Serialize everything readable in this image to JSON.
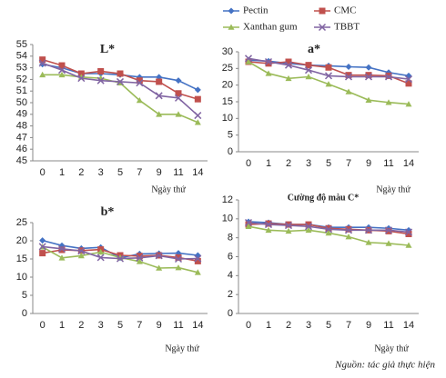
{
  "chart_data": [
    {
      "type": "line",
      "title": "L*",
      "x_label": "Ngày thứ",
      "categories": [
        "0",
        "1",
        "2",
        "3",
        "5",
        "7",
        "9",
        "11",
        "14"
      ],
      "ylim": [
        45,
        55
      ],
      "yticks": [
        45,
        46,
        47,
        48,
        49,
        50,
        51,
        52,
        53,
        54,
        55
      ],
      "series": [
        {
          "name": "Pectin",
          "color": "#4472c4",
          "marker": "diamond",
          "values": [
            53.3,
            53.0,
            52.5,
            52.5,
            52.4,
            52.2,
            52.2,
            51.9,
            51.1
          ]
        },
        {
          "name": "CMC",
          "color": "#c0504d",
          "marker": "square",
          "values": [
            53.7,
            53.2,
            52.5,
            52.7,
            52.5,
            51.9,
            51.8,
            50.8,
            50.3
          ]
        },
        {
          "name": "Xanthan gum",
          "color": "#9bbb59",
          "marker": "triangle",
          "values": [
            52.4,
            52.4,
            52.2,
            52.1,
            51.7,
            50.2,
            49.0,
            49.0,
            48.3
          ]
        },
        {
          "name": "TBBT",
          "color": "#8064a2",
          "marker": "x",
          "values": [
            53.4,
            52.8,
            52.1,
            51.9,
            51.8,
            51.7,
            50.6,
            50.4,
            48.9
          ]
        }
      ]
    },
    {
      "type": "line",
      "title": "a*",
      "x_label": "Ngày thứ",
      "categories": [
        "0",
        "1",
        "2",
        "3",
        "5",
        "7",
        "9",
        "11",
        "14"
      ],
      "ylim": [
        0,
        30
      ],
      "yticks": [
        0,
        5,
        10,
        15,
        20,
        25,
        30
      ],
      "series": [
        {
          "color": "#4472c4",
          "marker": "diamond",
          "values": [
            27.5,
            27.2,
            26.5,
            26.0,
            25.8,
            25.5,
            25.3,
            23.8,
            22.8
          ]
        },
        {
          "color": "#c0504d",
          "marker": "square",
          "values": [
            27.0,
            26.5,
            27.0,
            26.0,
            25.3,
            23.0,
            23.0,
            22.8,
            20.5
          ]
        },
        {
          "color": "#9bbb59",
          "marker": "triangle",
          "values": [
            27.0,
            23.5,
            22.0,
            22.5,
            20.3,
            18.0,
            15.5,
            14.8,
            14.3
          ]
        },
        {
          "color": "#8064a2",
          "marker": "x",
          "values": [
            28.0,
            27.0,
            26.0,
            24.5,
            22.8,
            22.5,
            22.5,
            22.5,
            21.8
          ]
        }
      ]
    },
    {
      "type": "line",
      "title": "b*",
      "x_label": "Ngày thứ",
      "categories": [
        "0",
        "1",
        "2",
        "3",
        "5",
        "7",
        "9",
        "11",
        "14"
      ],
      "ylim": [
        0,
        25
      ],
      "yticks": [
        0,
        5,
        10,
        15,
        20,
        25
      ],
      "series": [
        {
          "color": "#4472c4",
          "marker": "diamond",
          "values": [
            20.1,
            18.7,
            17.9,
            18.2,
            15.3,
            16.4,
            16.5,
            16.6,
            16.0
          ]
        },
        {
          "color": "#c0504d",
          "marker": "square",
          "values": [
            16.6,
            17.5,
            17.3,
            17.6,
            16.0,
            15.8,
            16.0,
            15.4,
            14.4
          ]
        },
        {
          "color": "#9bbb59",
          "marker": "triangle",
          "values": [
            18.3,
            15.3,
            15.9,
            16.9,
            15.4,
            14.3,
            12.5,
            12.6,
            11.3
          ]
        },
        {
          "color": "#8064a2",
          "marker": "x",
          "values": [
            18.4,
            17.8,
            17.2,
            15.4,
            15.1,
            15.3,
            15.9,
            15.0,
            15.1
          ]
        }
      ]
    },
    {
      "type": "line",
      "title": "Cường độ màu C*",
      "x_label": "Ngày thứ",
      "categories": [
        "0",
        "1",
        "2",
        "3",
        "5",
        "7",
        "9",
        "11",
        "14"
      ],
      "ylim": [
        0,
        12
      ],
      "yticks": [
        0,
        2,
        4,
        6,
        8,
        10,
        12
      ],
      "series": [
        {
          "color": "#4472c4",
          "marker": "diamond",
          "values": [
            9.7,
            9.6,
            9.4,
            9.4,
            9.1,
            9.1,
            9.1,
            9.0,
            8.8
          ]
        },
        {
          "color": "#c0504d",
          "marker": "square",
          "values": [
            9.4,
            9.5,
            9.4,
            9.4,
            9.0,
            8.9,
            8.8,
            8.7,
            8.4
          ]
        },
        {
          "color": "#9bbb59",
          "marker": "triangle",
          "values": [
            9.2,
            8.8,
            8.7,
            8.8,
            8.5,
            8.1,
            7.5,
            7.4,
            7.2
          ]
        },
        {
          "color": "#8064a2",
          "marker": "x",
          "values": [
            9.6,
            9.4,
            9.3,
            9.2,
            8.9,
            8.8,
            8.8,
            8.8,
            8.6
          ]
        }
      ]
    }
  ],
  "source": "Nguồn: tác giả thực hiện"
}
